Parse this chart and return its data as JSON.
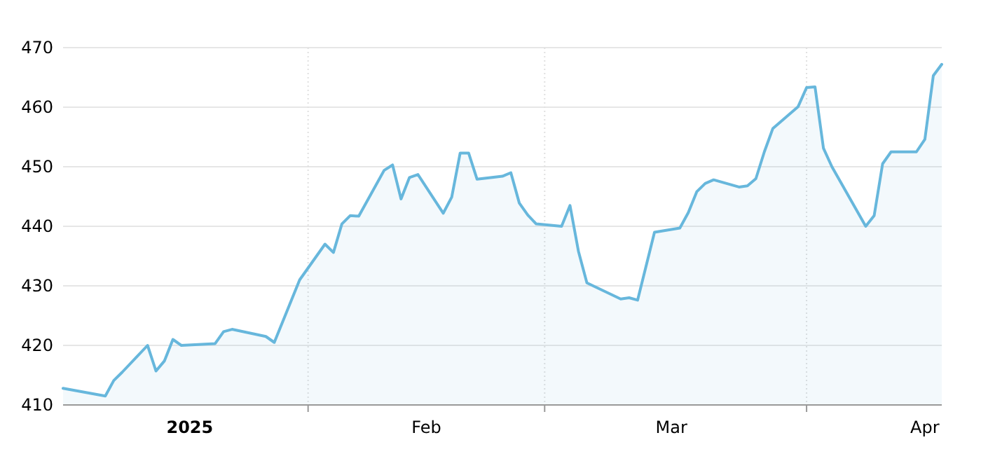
{
  "chart_data": {
    "type": "area",
    "color": "#67b7dc",
    "x": [
      "2025-01-03",
      "2025-01-08",
      "2025-01-09",
      "2025-01-10",
      "2025-01-13",
      "2025-01-14",
      "2025-01-15",
      "2025-01-16",
      "2025-01-17",
      "2025-01-21",
      "2025-01-22",
      "2025-01-23",
      "2025-01-27",
      "2025-01-28",
      "2025-01-31",
      "2025-02-03",
      "2025-02-04",
      "2025-02-05",
      "2025-02-06",
      "2025-02-07",
      "2025-02-10",
      "2025-02-11",
      "2025-02-12",
      "2025-02-13",
      "2025-02-14",
      "2025-02-17",
      "2025-02-18",
      "2025-02-19",
      "2025-02-20",
      "2025-02-21",
      "2025-02-24",
      "2025-02-25",
      "2025-02-26",
      "2025-02-27",
      "2025-02-28",
      "2025-03-03",
      "2025-03-04",
      "2025-03-05",
      "2025-03-06",
      "2025-03-10",
      "2025-03-11",
      "2025-03-12",
      "2025-03-14",
      "2025-03-17",
      "2025-03-18",
      "2025-03-19",
      "2025-03-20",
      "2025-03-21",
      "2025-03-24",
      "2025-03-25",
      "2025-03-26",
      "2025-03-27",
      "2025-03-28",
      "2025-03-31",
      "2025-04-01",
      "2025-04-02",
      "2025-04-03",
      "2025-04-04",
      "2025-04-08",
      "2025-04-09",
      "2025-04-10",
      "2025-04-11",
      "2025-04-14",
      "2025-04-15",
      "2025-04-16",
      "2025-04-17"
    ],
    "values": [
      412.8,
      411.5,
      414.1,
      415.5,
      420,
      415.7,
      417.4,
      421,
      420,
      420.3,
      422.3,
      422.7,
      421.5,
      420.5,
      431,
      437,
      435.6,
      440.4,
      441.8,
      441.7,
      449.4,
      450.3,
      444.6,
      448.2,
      448.7,
      442.2,
      444.9,
      452.3,
      452.3,
      447.9,
      448.4,
      449,
      443.9,
      441.9,
      440.4,
      440,
      443.5,
      435.8,
      430.5,
      427.8,
      428,
      427.6,
      439,
      439.7,
      442.3,
      445.8,
      447.2,
      447.8,
      446.6,
      446.8,
      448,
      452.5,
      456.4,
      460.1,
      463.3,
      463.4,
      453.1,
      450,
      440,
      441.8,
      450.5,
      452.5,
      452.5,
      454.6,
      465.3,
      467.2
    ],
    "xlim": [
      "2025-01-03",
      "2025-04-17"
    ],
    "xticks": [
      {
        "value": "2025-01-18",
        "label": "2025"
      },
      {
        "value": "2025-02-01",
        "label": null
      },
      {
        "value": "2025-02-15",
        "label": "Feb"
      },
      {
        "value": "2025-03-01",
        "label": null
      },
      {
        "value": "2025-03-16",
        "label": "Mar"
      },
      {
        "value": "2025-04-01",
        "label": null
      },
      {
        "value": "2025-04-15",
        "label": "Apr"
      }
    ],
    "ylim": [
      410,
      470
    ],
    "yticks": [
      410,
      420,
      430,
      440,
      450,
      460,
      470
    ],
    "grid": true
  }
}
